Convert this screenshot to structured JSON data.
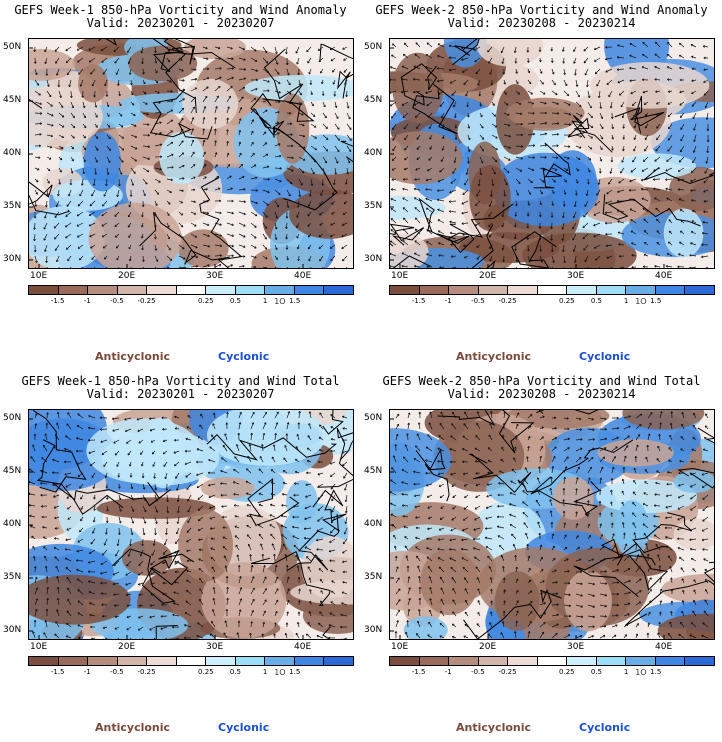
{
  "colorbar": {
    "labels": [
      "-1.5",
      "-1",
      "-0.5",
      "-0.25",
      "0.25",
      "0.5",
      "1",
      "1.5"
    ],
    "mid_mark": "1O",
    "colors": [
      "#7a4f3e",
      "#9a6b5a",
      "#b58c7e",
      "#d3b6ab",
      "#ecdcd5",
      "#ffffff",
      "#cdeffc",
      "#9fdcf5",
      "#6aaee8",
      "#3f87e2",
      "#2b6ad8"
    ]
  },
  "legend": {
    "anticyclonic": "Anticyclonic",
    "cyclonic": "Cyclonic"
  },
  "colors": {
    "anticyclonic": "#7a4a3a",
    "cyclonic": "#1a4fd6",
    "land_brown": "#8b6352",
    "sea_blue": "#3f87e2"
  },
  "axes": {
    "lat_labels": [
      "50N",
      "45N",
      "40N",
      "35N",
      "30N"
    ],
    "lon_labels": [
      "10E",
      "20E",
      "30E",
      "40E"
    ]
  },
  "panels": [
    {
      "title": "GEFS Week-1 850-hPa Vorticity and Wind Anomaly",
      "valid": "Valid: 20230201 - 20230207"
    },
    {
      "title": "GEFS Week-2 850-hPa Vorticity and Wind Anomaly",
      "valid": "Valid: 20230208 - 20230214"
    },
    {
      "title": "GEFS Week-1 850-hPa Vorticity and Wind Total",
      "valid": "Valid: 20230201 - 20230207"
    },
    {
      "title": "GEFS Week-2 850-hPa Vorticity and Wind Total",
      "valid": "Valid: 20230208 - 20230214"
    }
  ]
}
